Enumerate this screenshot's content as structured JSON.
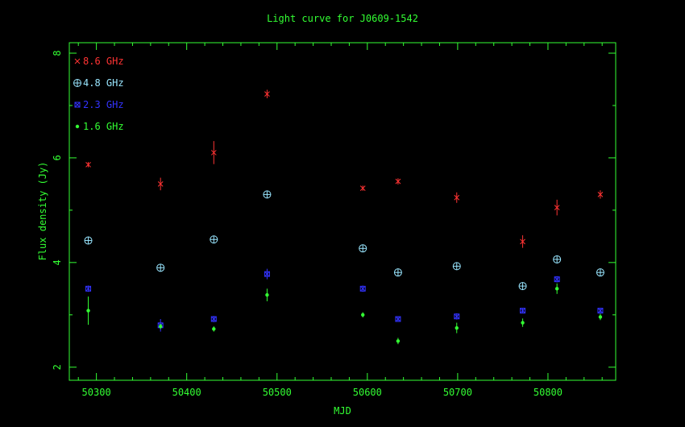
{
  "chart_data": {
    "type": "scatter",
    "title": "Light curve for J0609-1542",
    "xlabel": "MJD",
    "ylabel": "Flux density (Jy)",
    "xlim": [
      50270,
      50875
    ],
    "ylim": [
      1.75,
      8.2
    ],
    "x_ticks": [
      50300,
      50400,
      50500,
      50600,
      50700,
      50800
    ],
    "y_ticks": [
      2,
      4,
      6,
      8
    ],
    "grid": false,
    "legend_position": "top-left",
    "colors": {
      "axis": "#33ff33",
      "title": "#33ff33",
      "background": "#000000"
    },
    "series": [
      {
        "name": "8.6 GHz",
        "color": "#ff3333",
        "marker": "x",
        "points": [
          {
            "x": 50291,
            "y": 5.87,
            "err": 0.05
          },
          {
            "x": 50371,
            "y": 5.5,
            "err": 0.12
          },
          {
            "x": 50430,
            "y": 6.1,
            "err": 0.22
          },
          {
            "x": 50489,
            "y": 7.22,
            "err": 0.08
          },
          {
            "x": 50595,
            "y": 5.42,
            "err": 0.05
          },
          {
            "x": 50634,
            "y": 5.55,
            "err": 0.06
          },
          {
            "x": 50699,
            "y": 5.24,
            "err": 0.1
          },
          {
            "x": 50772,
            "y": 4.4,
            "err": 0.12
          },
          {
            "x": 50810,
            "y": 5.05,
            "err": 0.15
          },
          {
            "x": 50858,
            "y": 5.3,
            "err": 0.08
          }
        ]
      },
      {
        "name": "4.8 GHz",
        "color": "#99e6ff",
        "marker": "circle-plus",
        "points": [
          {
            "x": 50291,
            "y": 4.42
          },
          {
            "x": 50371,
            "y": 3.9
          },
          {
            "x": 50430,
            "y": 4.44
          },
          {
            "x": 50489,
            "y": 5.3
          },
          {
            "x": 50595,
            "y": 4.27
          },
          {
            "x": 50634,
            "y": 3.81
          },
          {
            "x": 50699,
            "y": 3.93
          },
          {
            "x": 50772,
            "y": 3.55
          },
          {
            "x": 50810,
            "y": 4.06
          },
          {
            "x": 50858,
            "y": 3.81
          }
        ]
      },
      {
        "name": "2.3 GHz",
        "color": "#3333ff",
        "marker": "box-x",
        "points": [
          {
            "x": 50291,
            "y": 3.5,
            "err": 0.06
          },
          {
            "x": 50371,
            "y": 2.8,
            "err": 0.12
          },
          {
            "x": 50430,
            "y": 2.92,
            "err": 0.06
          },
          {
            "x": 50489,
            "y": 3.78,
            "err": 0.1
          },
          {
            "x": 50595,
            "y": 3.5,
            "err": 0.06
          },
          {
            "x": 50634,
            "y": 2.92,
            "err": 0.05
          },
          {
            "x": 50699,
            "y": 2.97,
            "err": 0.06
          },
          {
            "x": 50772,
            "y": 3.08,
            "err": 0.05
          },
          {
            "x": 50810,
            "y": 3.68,
            "err": 0.06
          },
          {
            "x": 50858,
            "y": 3.08,
            "err": 0.05
          }
        ]
      },
      {
        "name": "1.6 GHz",
        "color": "#33ff33",
        "marker": "dot",
        "points": [
          {
            "x": 50291,
            "y": 3.08,
            "err": 0.27
          },
          {
            "x": 50371,
            "y": 2.78,
            "err": 0.05
          },
          {
            "x": 50430,
            "y": 2.73,
            "err": 0.05
          },
          {
            "x": 50489,
            "y": 3.38,
            "err": 0.12
          },
          {
            "x": 50595,
            "y": 3.0,
            "err": 0.05
          },
          {
            "x": 50634,
            "y": 2.5,
            "err": 0.06
          },
          {
            "x": 50699,
            "y": 2.75,
            "err": 0.1
          },
          {
            "x": 50772,
            "y": 2.85,
            "err": 0.08
          },
          {
            "x": 50810,
            "y": 3.5,
            "err": 0.1
          },
          {
            "x": 50858,
            "y": 2.96,
            "err": 0.06
          }
        ]
      }
    ]
  }
}
